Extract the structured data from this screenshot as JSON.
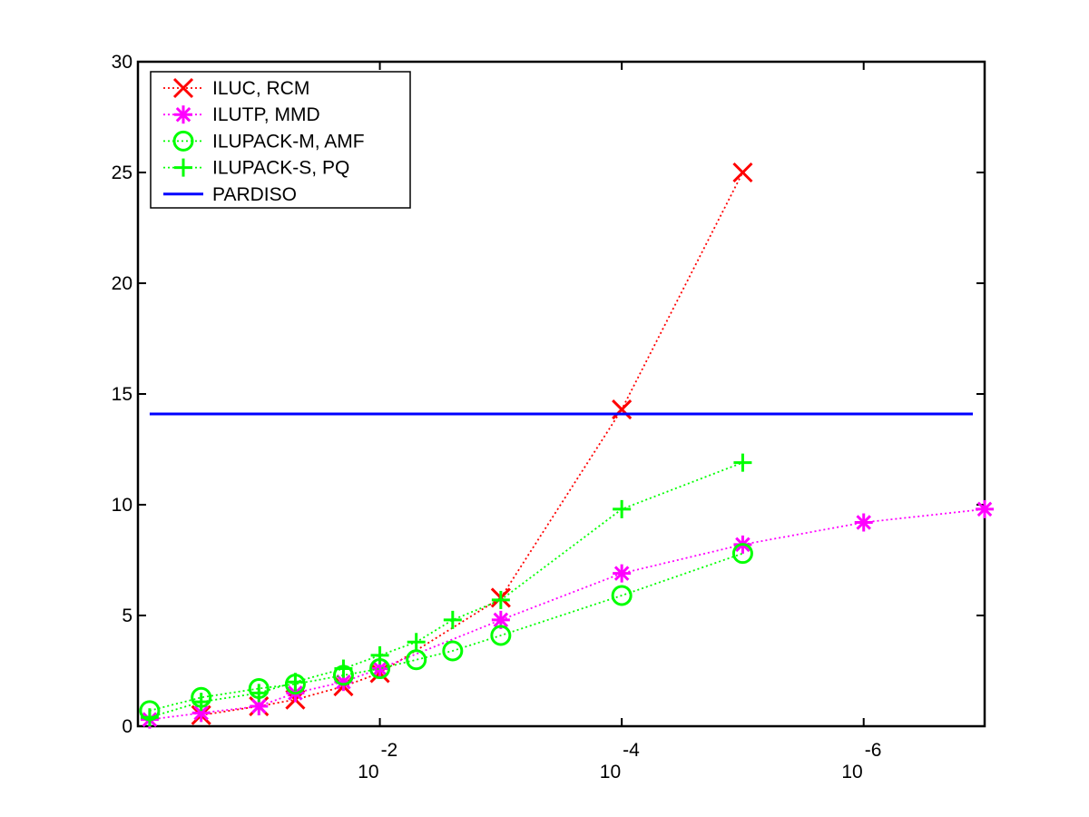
{
  "chart_data": {
    "type": "line",
    "x_scale": "log",
    "x_reversed": true,
    "xlim": [
      1.0,
      1e-07
    ],
    "ylim": [
      0,
      30
    ],
    "grid": false,
    "legend_placement": "top-left",
    "y_ticks": [
      0,
      5,
      10,
      15,
      20,
      25,
      30
    ],
    "y_tick_labels": [
      "0",
      "5",
      "10",
      "15",
      "20",
      "25",
      "30"
    ],
    "x_ticks": [
      {
        "value": 0.01,
        "base": "10",
        "exp": "-2"
      },
      {
        "value": 0.0001,
        "base": "10",
        "exp": "-4"
      },
      {
        "value": 1e-06,
        "base": "10",
        "exp": "-6"
      }
    ],
    "series": [
      {
        "name": "ILUC, RCM",
        "color": "#ff0000",
        "marker": "x",
        "line": "dotted",
        "points": [
          [
            0.3,
            0.5
          ],
          [
            0.1,
            0.9
          ],
          [
            0.05,
            1.2
          ],
          [
            0.02,
            1.8
          ],
          [
            0.01,
            2.4
          ],
          [
            0.001,
            5.8
          ],
          [
            0.0001,
            14.3
          ],
          [
            1e-05,
            25.0
          ]
        ]
      },
      {
        "name": "ILUTP, MMD",
        "color": "#ff00ff",
        "marker": "asterisk",
        "line": "dotted",
        "points": [
          [
            0.8,
            0.3
          ],
          [
            0.3,
            0.6
          ],
          [
            0.1,
            0.9
          ],
          [
            0.05,
            1.5
          ],
          [
            0.02,
            2.0
          ],
          [
            0.01,
            2.6
          ],
          [
            0.001,
            4.8
          ],
          [
            0.0001,
            6.9
          ],
          [
            1e-05,
            8.2
          ],
          [
            1e-06,
            9.2
          ],
          [
            1e-07,
            9.8
          ]
        ]
      },
      {
        "name": "ILUPACK-M, AMF",
        "color": "#00ff00",
        "marker": "circle",
        "line": "dotted",
        "points": [
          [
            0.8,
            0.7
          ],
          [
            0.3,
            1.3
          ],
          [
            0.1,
            1.7
          ],
          [
            0.05,
            1.9
          ],
          [
            0.02,
            2.3
          ],
          [
            0.01,
            2.6
          ],
          [
            0.005,
            3.0
          ],
          [
            0.0025,
            3.4
          ],
          [
            0.001,
            4.1
          ],
          [
            0.0001,
            5.9
          ],
          [
            1e-05,
            7.8
          ]
        ]
      },
      {
        "name": "ILUPACK-S, PQ",
        "color": "#00ff00",
        "marker": "plus",
        "line": "dotted",
        "points": [
          [
            0.8,
            0.4
          ],
          [
            0.3,
            1.1
          ],
          [
            0.1,
            1.5
          ],
          [
            0.05,
            2.0
          ],
          [
            0.02,
            2.6
          ],
          [
            0.01,
            3.2
          ],
          [
            0.005,
            3.8
          ],
          [
            0.0025,
            4.8
          ],
          [
            0.001,
            5.7
          ],
          [
            0.0001,
            9.8
          ],
          [
            1e-05,
            11.9
          ]
        ]
      },
      {
        "name": "PARDISO",
        "color": "#0000ff",
        "marker": "none",
        "line": "solid",
        "hline": 14.1
      }
    ]
  }
}
